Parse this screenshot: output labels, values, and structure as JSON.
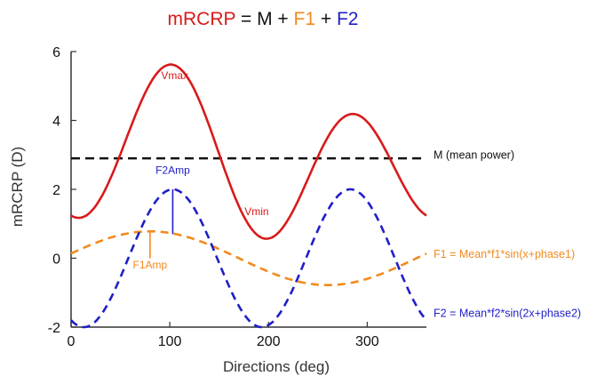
{
  "colors": {
    "total": "#d91a1a",
    "mean": "#111111",
    "f1": "#f28a1e",
    "f2": "#1f1fc8",
    "axis": "#333333"
  },
  "title": {
    "parts": [
      {
        "text": "mRCRP",
        "color": "#d91a1a"
      },
      {
        "text": " = ",
        "color": "#111111"
      },
      {
        "text": "M",
        "color": "#111111"
      },
      {
        "text": " + ",
        "color": "#111111"
      },
      {
        "text": "F1",
        "color": "#f28a1e"
      },
      {
        "text": " + ",
        "color": "#111111"
      },
      {
        "text": "F2",
        "color": "#1f1fc8"
      }
    ]
  },
  "chart_data": {
    "type": "line",
    "xlabel": "Directions (deg)",
    "ylabel": "mRCRP (D)",
    "xlim": [
      0,
      360
    ],
    "ylim": [
      -2,
      6
    ],
    "xticks": [
      0,
      100,
      200,
      300
    ],
    "yticks": [
      -2,
      0,
      2,
      4,
      6
    ],
    "grid": false,
    "mean": 2.9,
    "f1": {
      "amplitude": 0.78,
      "peak_deg": 80
    },
    "f2": {
      "amplitude": 2.0,
      "peak_deg": 103
    },
    "series": [
      {
        "name": "mRCRP",
        "style": "solid",
        "color": "#d91a1a"
      },
      {
        "name": "M (mean power)",
        "style": "dashed",
        "color": "#111111"
      },
      {
        "name": "F1 = Mean*f1*sin(x+phase1)",
        "style": "dashed",
        "color": "#f28a1e"
      },
      {
        "name": "F2 = Mean*f2*sin(2x+phase2)",
        "style": "dashed",
        "color": "#1f1fc8"
      }
    ],
    "annotations": [
      {
        "text": "Vmax",
        "x": 105,
        "y": 5.2,
        "color": "#d91a1a"
      },
      {
        "text": "Vmin",
        "x": 188,
        "y": 1.25,
        "color": "#d91a1a"
      },
      {
        "text": "F2Amp",
        "x": 103,
        "y": 2.45,
        "color": "#1f1fc8"
      },
      {
        "text": "F1Amp",
        "x": 80,
        "y": -0.3,
        "color": "#f28a1e"
      }
    ],
    "amp_markers": [
      {
        "name": "F2Amp",
        "x": 103,
        "y0": 0.7,
        "y1": 2.0,
        "color": "#1f1fc8"
      },
      {
        "name": "F1Amp",
        "x": 80,
        "y0": 0.0,
        "y1": 0.78,
        "color": "#f28a1e"
      }
    ],
    "legend": [
      {
        "text": "M (mean power)",
        "color": "#111111",
        "y": 3.0
      },
      {
        "text": "F1 = Mean*f1*sin(x+phase1)",
        "color": "#f28a1e",
        "y": 0.12
      },
      {
        "text": "F2 = Mean*f2*sin(2x+phase2)",
        "color": "#1f1fc8",
        "y": -1.6
      }
    ]
  }
}
